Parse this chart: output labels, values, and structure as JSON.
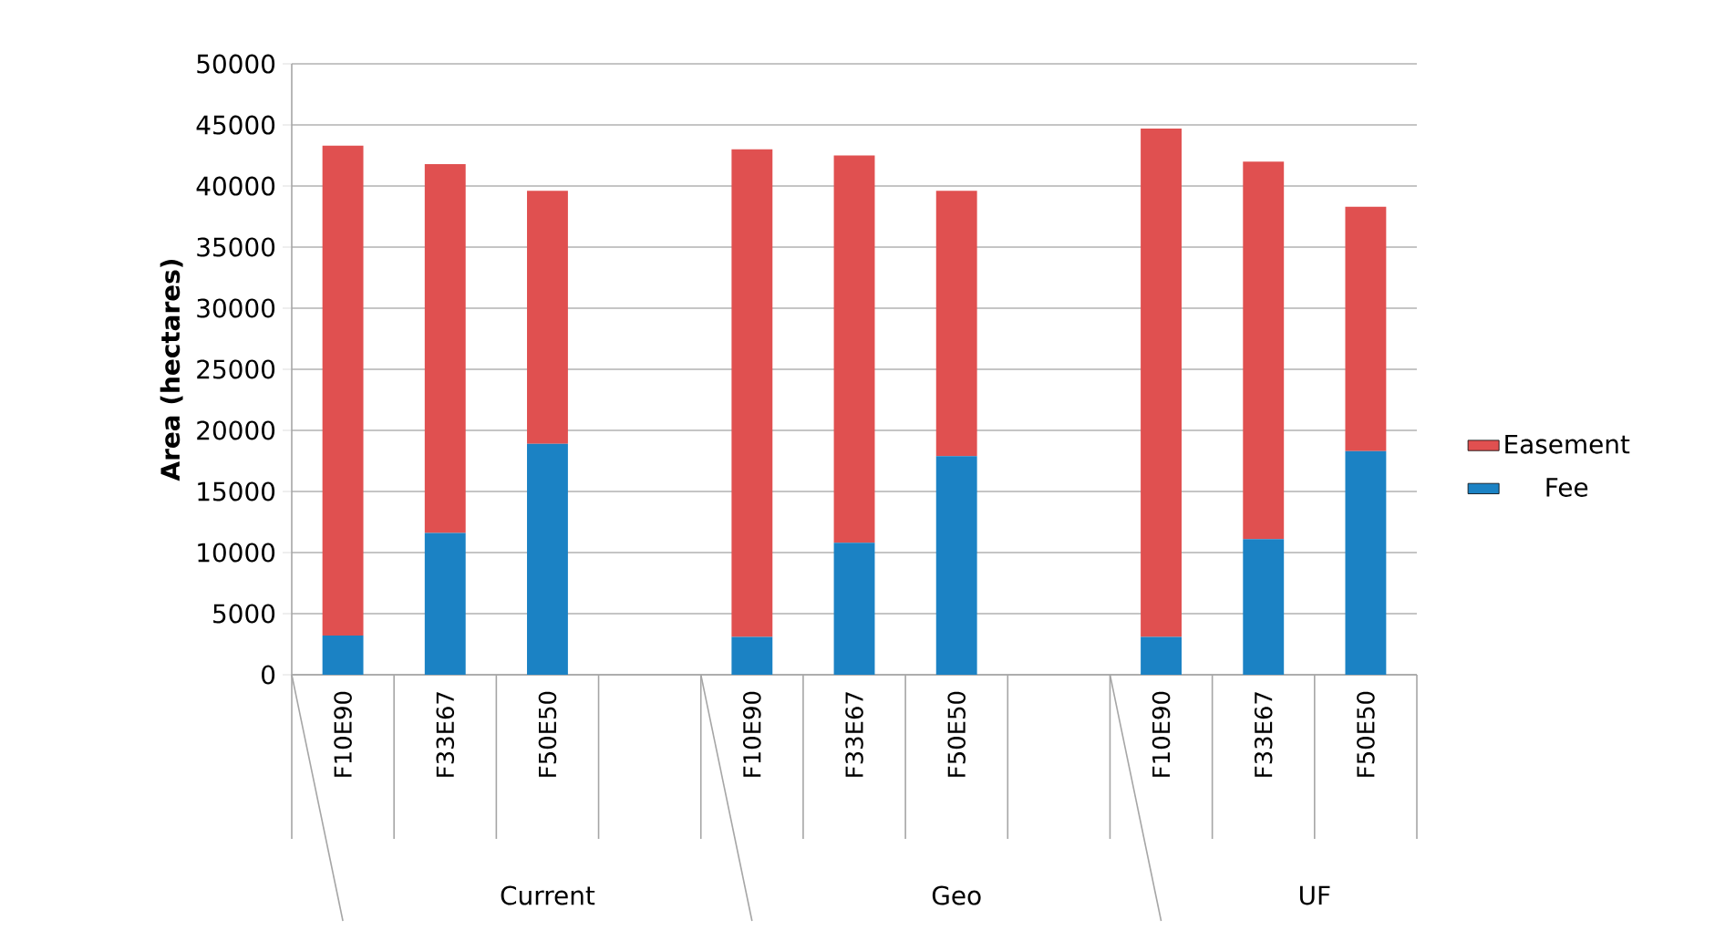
{
  "chart_data": {
    "type": "bar",
    "stacked": true,
    "ylabel": "Area (hectares)",
    "categories": [
      "F10E90",
      "F33E67",
      "F50E50",
      null,
      "F10E90",
      "F33E67",
      "F50E50",
      null,
      "F10E90",
      "F33E67",
      "F50E50"
    ],
    "annotations": [
      "Current",
      "Geo",
      "UF"
    ],
    "series": [
      {
        "name": "Fee",
        "color": "#1b82c4",
        "values": [
          3200,
          11600,
          18900,
          null,
          3100,
          10800,
          17900,
          null,
          3100,
          11100,
          18300
        ]
      },
      {
        "name": "Easement",
        "color": "#e05050",
        "values": [
          40100,
          30200,
          20700,
          null,
          39900,
          31700,
          21700,
          null,
          41600,
          30900,
          20000
        ]
      }
    ],
    "ylim": [
      0,
      50000
    ],
    "yticks": [
      0,
      5000,
      10000,
      15000,
      20000,
      25000,
      30000,
      35000,
      40000,
      45000,
      50000
    ],
    "grid": "y",
    "legend": "right"
  }
}
